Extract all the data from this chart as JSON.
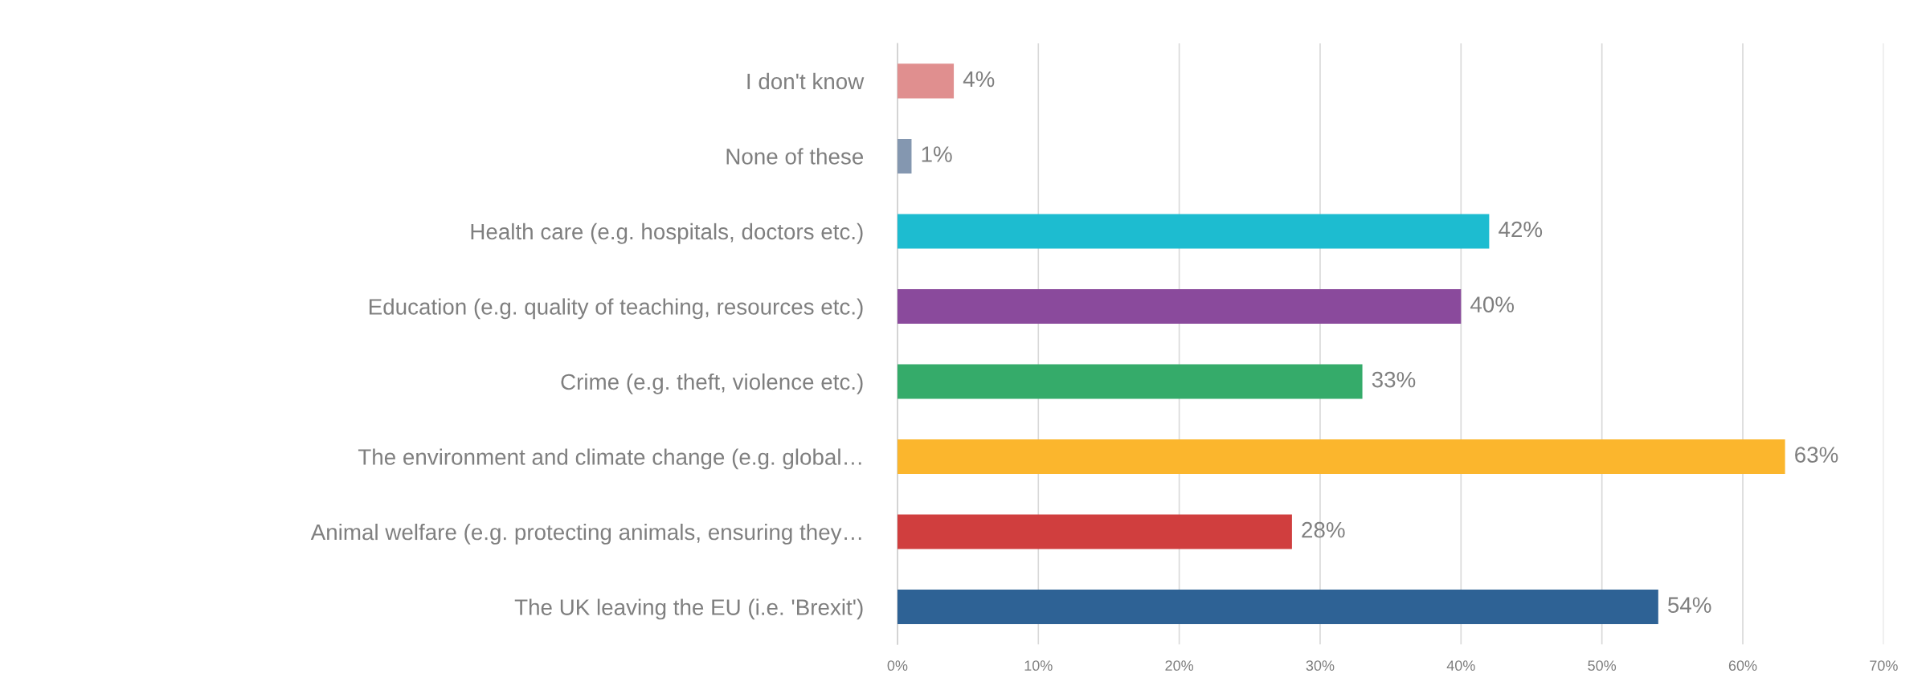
{
  "chart_data": {
    "type": "bar",
    "orientation": "horizontal",
    "categories": [
      "I don't know",
      "None of these",
      "Health care (e.g. hospitals, doctors etc.)",
      "Education (e.g. quality of teaching, resources etc.)",
      "Crime (e.g. theft, violence etc.)",
      "The environment and climate change (e.g. global…",
      "Animal welfare (e.g. protecting animals, ensuring they…",
      "The UK leaving the EU (i.e. 'Brexit')"
    ],
    "values": [
      4,
      1,
      42,
      40,
      33,
      63,
      28,
      54
    ],
    "value_labels": [
      "4%",
      "1%",
      "42%",
      "40%",
      "33%",
      "63%",
      "28%",
      "54%"
    ],
    "colors": [
      "#e08f8f",
      "#8497b0",
      "#1dbcd0",
      "#8a4a9c",
      "#35ab6a",
      "#fbb62d",
      "#d03e3e",
      "#2e6295"
    ],
    "xlim": [
      0,
      70
    ],
    "xticks": [
      {
        "value": 0,
        "label": "0%"
      },
      {
        "value": 10,
        "label": "10%"
      },
      {
        "value": 20,
        "label": "20%"
      },
      {
        "value": 30,
        "label": "30%"
      },
      {
        "value": 40,
        "label": "40%"
      },
      {
        "value": 50,
        "label": "50%"
      },
      {
        "value": 60,
        "label": "60%"
      },
      {
        "value": 70,
        "label": "70%"
      }
    ],
    "grid": "x",
    "legend": false
  }
}
